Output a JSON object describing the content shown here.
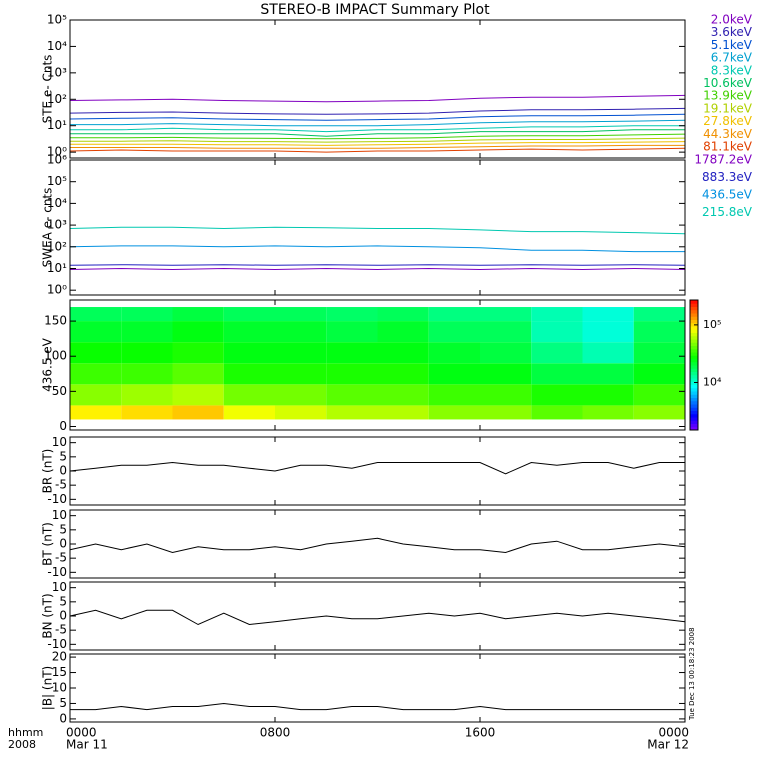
{
  "title": "STEREO-B IMPACT Summary Plot",
  "axis_caption": [
    "hhmm",
    "2008"
  ],
  "footer_note": "Tue Dec 13 00:18:23 2008",
  "chart_data": [
    {
      "type": "line",
      "ylabel": "STE e- Cnts",
      "log": true,
      "ylim": [
        0.6,
        100000
      ],
      "yticks": [
        {
          "value": 1,
          "label": "10⁰"
        },
        {
          "value": 10,
          "label": "10¹"
        },
        {
          "value": 100,
          "label": "10²"
        },
        {
          "value": 1000,
          "label": "10³"
        },
        {
          "value": 10000,
          "label": "10⁴"
        },
        {
          "value": 100000,
          "label": "10⁵"
        }
      ],
      "x": [
        0,
        2,
        4,
        6,
        8,
        10,
        12,
        14,
        16,
        18,
        20,
        22,
        24
      ],
      "series": [
        {
          "name": "2.0keV",
          "color": "#8000c0",
          "values": [
            90,
            95,
            100,
            90,
            85,
            80,
            85,
            90,
            110,
            120,
            120,
            130,
            140
          ]
        },
        {
          "name": "3.6keV",
          "color": "#3020b0",
          "values": [
            30,
            32,
            33,
            30,
            28,
            27,
            28,
            30,
            36,
            40,
            40,
            42,
            45
          ]
        },
        {
          "name": "5.1keV",
          "color": "#0050d0",
          "values": [
            18,
            19,
            20,
            18,
            17,
            16,
            17,
            18,
            22,
            24,
            24,
            25,
            27
          ]
        },
        {
          "name": "6.7keV",
          "color": "#00a0d0",
          "values": [
            11,
            11,
            12,
            11,
            10,
            10,
            10,
            11,
            13,
            14,
            14,
            15,
            16
          ]
        },
        {
          "name": "8.3keV",
          "color": "#00c8b0",
          "values": [
            7,
            7,
            8,
            7,
            7,
            6,
            7,
            7,
            8,
            9,
            9,
            10,
            10
          ]
        },
        {
          "name": "10.6keV",
          "color": "#00c060",
          "values": [
            5,
            5,
            5,
            5,
            5,
            4,
            5,
            5,
            6,
            6,
            6,
            7,
            7
          ]
        },
        {
          "name": "13.9keV",
          "color": "#40d000",
          "values": [
            3.5,
            3.5,
            3.6,
            3.4,
            3.3,
            3.2,
            3.3,
            3.5,
            4,
            4.2,
            4.2,
            4.5,
            4.8
          ]
        },
        {
          "name": "19.1keV",
          "color": "#b0d000",
          "values": [
            2.6,
            2.6,
            2.7,
            2.5,
            2.5,
            2.4,
            2.5,
            2.6,
            2.9,
            3,
            3,
            3.2,
            3.4
          ]
        },
        {
          "name": "27.8keV",
          "color": "#f0c000",
          "values": [
            2,
            2,
            2,
            1.9,
            1.9,
            1.8,
            1.9,
            2,
            2.2,
            2.3,
            2.3,
            2.4,
            2.5
          ]
        },
        {
          "name": "44.3keV",
          "color": "#f09000",
          "values": [
            1.5,
            1.5,
            1.5,
            1.4,
            1.4,
            1.4,
            1.4,
            1.5,
            1.6,
            1.7,
            1.7,
            1.8,
            1.8
          ]
        },
        {
          "name": "81.1keV",
          "color": "#e04000",
          "values": [
            1.1,
            1.2,
            1.1,
            1.1,
            1.1,
            1,
            1.1,
            1.1,
            1.2,
            1.3,
            1.2,
            1.3,
            1.4
          ]
        }
      ]
    },
    {
      "type": "line",
      "ylabel": "SWEA e- cnts",
      "log": true,
      "ylim": [
        0.6,
        1000000
      ],
      "yticks": [
        {
          "value": 1,
          "label": "10⁰"
        },
        {
          "value": 10,
          "label": "10¹"
        },
        {
          "value": 100,
          "label": "10²"
        },
        {
          "value": 1000,
          "label": "10³"
        },
        {
          "value": 10000,
          "label": "10⁴"
        },
        {
          "value": 100000,
          "label": "10⁵"
        },
        {
          "value": 1000000,
          "label": "10⁶"
        }
      ],
      "x": [
        0,
        2,
        4,
        6,
        8,
        10,
        12,
        14,
        16,
        18,
        20,
        22,
        24
      ],
      "series": [
        {
          "name": "1787.2eV",
          "color": "#8000c0",
          "values": [
            9,
            10,
            9,
            10,
            9,
            10,
            9,
            10,
            9,
            10,
            9,
            10,
            9
          ]
        },
        {
          "name": "883.3eV",
          "color": "#2020c0",
          "values": [
            14,
            15,
            14,
            15,
            14,
            15,
            14,
            15,
            14,
            15,
            14,
            15,
            14
          ]
        },
        {
          "name": "436.5eV",
          "color": "#0090e0",
          "values": [
            100,
            110,
            110,
            100,
            110,
            100,
            110,
            100,
            90,
            70,
            70,
            60,
            60
          ]
        },
        {
          "name": "215.8eV",
          "color": "#00c8b0",
          "values": [
            700,
            800,
            800,
            700,
            800,
            750,
            700,
            700,
            600,
            500,
            500,
            450,
            400
          ]
        }
      ]
    },
    {
      "type": "heatmap",
      "ylabel": "436.5 eV",
      "ylim": [
        -5,
        180
      ],
      "yticks": [
        0,
        50,
        100,
        150
      ],
      "x_edges": [
        0,
        2,
        4,
        6,
        8,
        10,
        12,
        14,
        16,
        18,
        20,
        22,
        24
      ],
      "y_edges": [
        10,
        30,
        60,
        90,
        120,
        150,
        170
      ],
      "z": [
        [
          90000,
          100000,
          110000,
          80000,
          70000,
          60000,
          60000,
          50000,
          50000,
          40000,
          45000,
          50000
        ],
        [
          50000,
          55000,
          60000,
          45000,
          45000,
          40000,
          40000,
          35000,
          35000,
          30000,
          30000,
          35000
        ],
        [
          35000,
          35000,
          40000,
          30000,
          30000,
          30000,
          30000,
          25000,
          25000,
          20000,
          20000,
          25000
        ],
        [
          28000,
          28000,
          30000,
          25000,
          25000,
          25000,
          25000,
          22000,
          20000,
          15000,
          12000,
          20000
        ],
        [
          22000,
          22000,
          25000,
          22000,
          22000,
          20000,
          22000,
          18000,
          18000,
          12000,
          10000,
          18000
        ],
        [
          18000,
          18000,
          20000,
          18000,
          18000,
          17000,
          18000,
          15000,
          15000,
          12000,
          10000,
          15000
        ]
      ],
      "zlim": [
        1500,
        270000
      ],
      "zlog": true,
      "zticks": [
        {
          "value": 10000,
          "label": "10⁴"
        },
        {
          "value": 100000,
          "label": "10⁵"
        }
      ]
    },
    {
      "type": "line",
      "ylabel": "BR (nT)",
      "ylim": [
        -12,
        12
      ],
      "yticks": [
        -10,
        -5,
        0,
        5,
        10
      ],
      "x": [
        0,
        1,
        2,
        3,
        4,
        5,
        6,
        7,
        8,
        9,
        10,
        11,
        12,
        13,
        14,
        15,
        16,
        17,
        18,
        19,
        20,
        21,
        22,
        23,
        24
      ],
      "series": [
        {
          "color": "#000000",
          "values": [
            0,
            1,
            2,
            2,
            3,
            2,
            2,
            1,
            0,
            2,
            2,
            1,
            3,
            3,
            3,
            3,
            3,
            -1,
            3,
            2,
            3,
            3,
            1,
            3,
            3
          ]
        }
      ]
    },
    {
      "type": "line",
      "ylabel": "BT (nT)",
      "ylim": [
        -12,
        12
      ],
      "yticks": [
        -10,
        -5,
        0,
        5,
        10
      ],
      "x": [
        0,
        1,
        2,
        3,
        4,
        5,
        6,
        7,
        8,
        9,
        10,
        11,
        12,
        13,
        14,
        15,
        16,
        17,
        18,
        19,
        20,
        21,
        22,
        23,
        24
      ],
      "series": [
        {
          "color": "#000000",
          "values": [
            -2,
            0,
            -2,
            0,
            -3,
            -1,
            -2,
            -2,
            -1,
            -2,
            0,
            1,
            2,
            0,
            -1,
            -2,
            -2,
            -3,
            0,
            1,
            -2,
            -2,
            -1,
            0,
            -1
          ]
        }
      ]
    },
    {
      "type": "line",
      "ylabel": "BN (nT)",
      "ylim": [
        -12,
        12
      ],
      "yticks": [
        -10,
        -5,
        0,
        5,
        10
      ],
      "x": [
        0,
        1,
        2,
        3,
        4,
        5,
        6,
        7,
        8,
        9,
        10,
        11,
        12,
        13,
        14,
        15,
        16,
        17,
        18,
        19,
        20,
        21,
        22,
        23,
        24
      ],
      "series": [
        {
          "color": "#000000",
          "values": [
            0,
            2,
            -1,
            2,
            2,
            -3,
            1,
            -3,
            -2,
            -1,
            0,
            -1,
            -1,
            0,
            1,
            0,
            1,
            -1,
            0,
            1,
            0,
            1,
            0,
            -1,
            -2
          ]
        }
      ]
    },
    {
      "type": "line",
      "ylabel": "|B| (nT)",
      "ylim": [
        -1,
        21
      ],
      "yticks": [
        0,
        5,
        10,
        15,
        20
      ],
      "x": [
        0,
        1,
        2,
        3,
        4,
        5,
        6,
        7,
        8,
        9,
        10,
        11,
        12,
        13,
        14,
        15,
        16,
        17,
        18,
        19,
        20,
        21,
        22,
        23,
        24
      ],
      "series": [
        {
          "color": "#000000",
          "values": [
            3,
            3,
            4,
            3,
            4,
            4,
            5,
            4,
            4,
            3,
            3,
            4,
            4,
            3,
            3,
            3,
            4,
            3,
            3,
            3,
            3,
            3,
            3,
            3,
            3
          ]
        }
      ],
      "xlim": [
        0,
        24
      ],
      "xticks": [
        {
          "value": 0,
          "label": "0000"
        },
        {
          "value": 8,
          "label": "0800"
        },
        {
          "value": 16,
          "label": "1600"
        },
        {
          "value": 24,
          "label": "0000"
        }
      ],
      "date_labels": [
        {
          "text": "Mar 11",
          "x": 0
        },
        {
          "text": "Mar 12",
          "x": 24
        }
      ]
    }
  ]
}
